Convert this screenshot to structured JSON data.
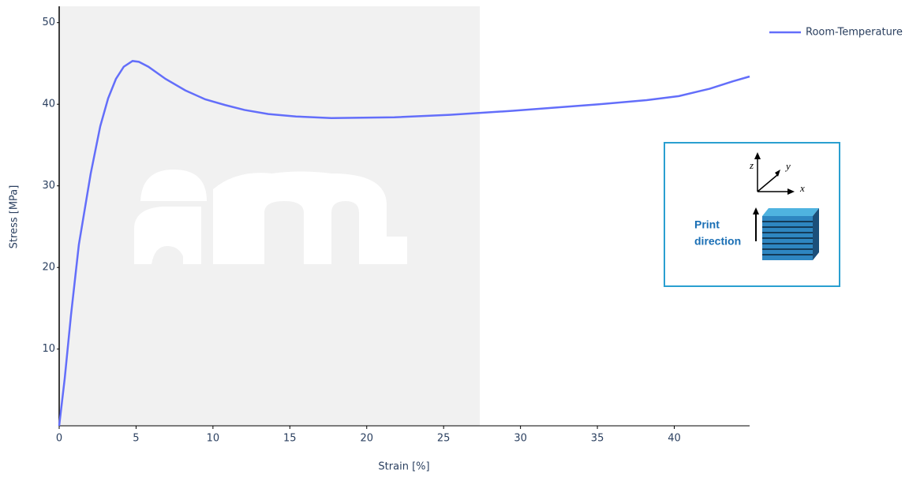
{
  "chart_data": {
    "type": "line",
    "x_label": "Strain [%]",
    "y_label": "Stress [MPa]",
    "series": [
      {
        "name": "Room-Temperature",
        "color": "#636efa",
        "x": [
          0,
          0.36,
          0.77,
          1.28,
          2.05,
          2.67,
          3.18,
          3.69,
          4.2,
          4.77,
          5.18,
          5.8,
          6.92,
          8.2,
          9.5,
          10.8,
          12.05,
          13.6,
          15.4,
          17.7,
          21.8,
          25.4,
          29.5,
          35.1,
          38.2,
          40.3,
          42.3,
          43.8,
          44.9
        ],
        "values": [
          0.6,
          6.4,
          14.2,
          22.8,
          31.5,
          37.3,
          40.7,
          43.1,
          44.6,
          45.3,
          45.2,
          44.6,
          43.1,
          41.7,
          40.6,
          39.9,
          39.3,
          38.8,
          38.5,
          38.3,
          38.4,
          38.7,
          39.2,
          40.0,
          40.5,
          41.0,
          41.9,
          42.8,
          43.4
        ]
      }
    ],
    "xlim": [
      0,
      44.9
    ],
    "xticks": [
      0,
      5,
      10,
      15,
      20,
      25,
      30,
      35,
      40
    ],
    "ylim": [
      0.6,
      52
    ],
    "yticks": [
      10,
      20,
      30,
      40,
      50
    ],
    "legend": "top-right",
    "inset": {
      "label_line1": "Print",
      "label_line2": "direction",
      "axis_x": "x",
      "axis_y": "y",
      "axis_z": "z"
    }
  }
}
